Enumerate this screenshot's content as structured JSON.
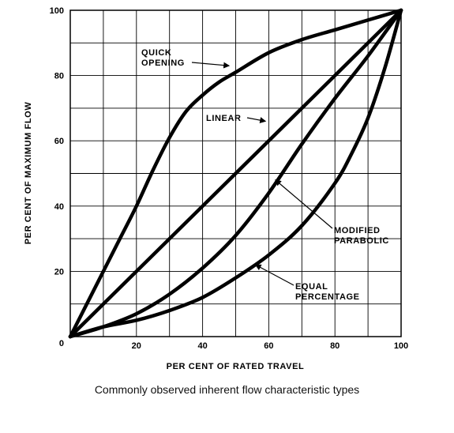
{
  "chart_data": {
    "type": "line",
    "xlabel": "PER CENT OF RATED TRAVEL",
    "ylabel": "PER CENT OF MAXIMUM FLOW",
    "xlim": [
      0,
      100
    ],
    "ylim": [
      0,
      100
    ],
    "x_ticks": [
      {
        "value": 20,
        "label": "20"
      },
      {
        "value": 40,
        "label": "40"
      },
      {
        "value": 60,
        "label": "60"
      },
      {
        "value": 80,
        "label": "80"
      },
      {
        "value": 100,
        "label": "100"
      }
    ],
    "y_ticks": [
      {
        "value": 0,
        "label": "0"
      },
      {
        "value": 20,
        "label": "20"
      },
      {
        "value": 40,
        "label": "40"
      },
      {
        "value": 60,
        "label": "60"
      },
      {
        "value": 80,
        "label": "80"
      },
      {
        "value": 100,
        "label": "100"
      }
    ],
    "grid": true,
    "grid_step": 10,
    "series": [
      {
        "name": "QUICK OPENING",
        "x": [
          0,
          5,
          10,
          15,
          20,
          25,
          30,
          35,
          40,
          45,
          50,
          60,
          70,
          80,
          90,
          100
        ],
        "y": [
          0,
          10,
          20,
          30,
          40,
          51,
          61,
          69,
          74,
          78,
          81,
          87,
          91,
          94,
          97,
          100
        ]
      },
      {
        "name": "LINEAR",
        "x": [
          0,
          100
        ],
        "y": [
          0,
          100
        ]
      },
      {
        "name": "MODIFIED PARABOLIC",
        "x": [
          0,
          10,
          20,
          30,
          40,
          50,
          60,
          70,
          80,
          90,
          100
        ],
        "y": [
          0,
          3,
          7,
          13,
          21,
          31,
          44,
          59,
          73,
          86,
          100
        ]
      },
      {
        "name": "EQUAL PERCENTAGE",
        "x": [
          0,
          10,
          20,
          30,
          40,
          50,
          60,
          70,
          80,
          85,
          90,
          95,
          100
        ],
        "y": [
          0,
          3,
          5,
          8,
          12,
          18,
          25,
          34,
          47,
          56,
          67,
          82,
          100
        ]
      }
    ],
    "annotations": [
      {
        "lines": [
          "QUICK",
          "OPENING"
        ],
        "points_to": "QUICK OPENING",
        "at": [
          48,
          83
        ]
      },
      {
        "lines": [
          "LINEAR"
        ],
        "points_to": "LINEAR",
        "at": [
          59,
          66
        ]
      },
      {
        "lines": [
          "MODIFIED",
          "PARABOLIC"
        ],
        "points_to": "MODIFIED PARABOLIC",
        "at": [
          62,
          48
        ]
      },
      {
        "lines": [
          "EQUAL",
          "PERCENTAGE"
        ],
        "points_to": "EQUAL PERCENTAGE",
        "at": [
          56,
          22
        ]
      }
    ]
  },
  "caption": "Commonly observed inherent flow characteristic types"
}
